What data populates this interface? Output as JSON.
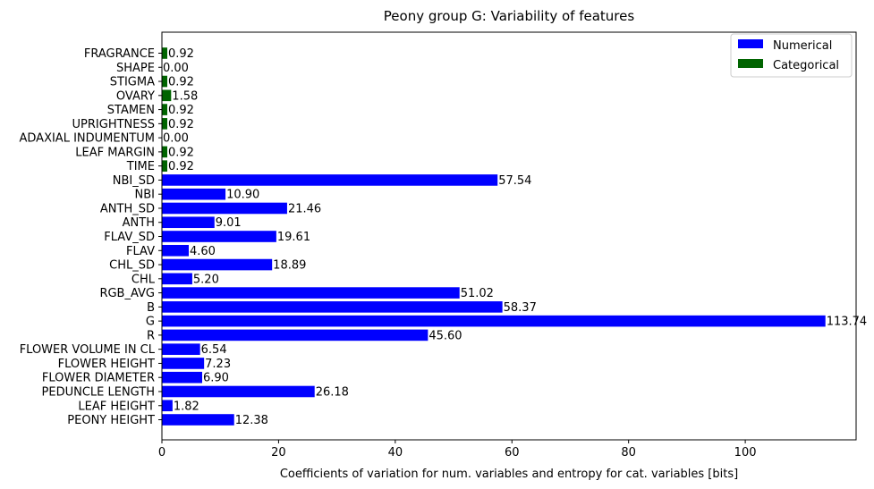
{
  "chart_data": {
    "type": "bar",
    "orientation": "horizontal",
    "title": "Peony group G: Variability of features",
    "xlabel": "Coefficients of variation for num. variables and entropy for cat. variables [bits]",
    "ylabel": "",
    "xlim": [
      0,
      119
    ],
    "xticks": [
      "0",
      "20",
      "40",
      "60",
      "80",
      "100"
    ],
    "grid": false,
    "legend_position": "top-right",
    "series": [
      {
        "name": "Numerical",
        "color": "#0000ff"
      },
      {
        "name": "Categorical",
        "color": "#006400"
      }
    ],
    "bars": [
      {
        "category": "FRAGRANCE",
        "value": 0.92,
        "label": "0.92",
        "series": "Categorical"
      },
      {
        "category": "SHAPE",
        "value": 0.0,
        "label": "0.00",
        "series": "Categorical"
      },
      {
        "category": "STIGMA",
        "value": 0.92,
        "label": "0.92",
        "series": "Categorical"
      },
      {
        "category": "OVARY",
        "value": 1.58,
        "label": "1.58",
        "series": "Categorical"
      },
      {
        "category": "STAMEN",
        "value": 0.92,
        "label": "0.92",
        "series": "Categorical"
      },
      {
        "category": "UPRIGHTNESS",
        "value": 0.92,
        "label": "0.92",
        "series": "Categorical"
      },
      {
        "category": "ADAXIAL INDUMENTUM",
        "value": 0.0,
        "label": "0.00",
        "series": "Categorical"
      },
      {
        "category": "LEAF MARGIN",
        "value": 0.92,
        "label": "0.92",
        "series": "Categorical"
      },
      {
        "category": "TIME",
        "value": 0.92,
        "label": "0.92",
        "series": "Categorical"
      },
      {
        "category": "NBI_SD",
        "value": 57.54,
        "label": "57.54",
        "series": "Numerical"
      },
      {
        "category": "NBI",
        "value": 10.9,
        "label": "10.90",
        "series": "Numerical"
      },
      {
        "category": "ANTH_SD",
        "value": 21.46,
        "label": "21.46",
        "series": "Numerical"
      },
      {
        "category": "ANTH",
        "value": 9.01,
        "label": "9.01",
        "series": "Numerical"
      },
      {
        "category": "FLAV_SD",
        "value": 19.61,
        "label": "19.61",
        "series": "Numerical"
      },
      {
        "category": "FLAV",
        "value": 4.6,
        "label": "4.60",
        "series": "Numerical"
      },
      {
        "category": "CHL_SD",
        "value": 18.89,
        "label": "18.89",
        "series": "Numerical"
      },
      {
        "category": "CHL",
        "value": 5.2,
        "label": "5.20",
        "series": "Numerical"
      },
      {
        "category": "RGB_AVG",
        "value": 51.02,
        "label": "51.02",
        "series": "Numerical"
      },
      {
        "category": "B",
        "value": 58.37,
        "label": "58.37",
        "series": "Numerical"
      },
      {
        "category": "G",
        "value": 113.74,
        "label": "113.74",
        "series": "Numerical"
      },
      {
        "category": "R",
        "value": 45.6,
        "label": "45.60",
        "series": "Numerical"
      },
      {
        "category": "FLOWER VOLUME IN CL",
        "value": 6.54,
        "label": "6.54",
        "series": "Numerical"
      },
      {
        "category": "FLOWER HEIGHT",
        "value": 7.23,
        "label": "7.23",
        "series": "Numerical"
      },
      {
        "category": "FLOWER DIAMETER",
        "value": 6.9,
        "label": "6.90",
        "series": "Numerical"
      },
      {
        "category": "PEDUNCLE LENGTH",
        "value": 26.18,
        "label": "26.18",
        "series": "Numerical"
      },
      {
        "category": "LEAF HEIGHT",
        "value": 1.82,
        "label": "1.82",
        "series": "Numerical"
      },
      {
        "category": "PEONY HEIGHT",
        "value": 12.38,
        "label": "12.38",
        "series": "Numerical"
      }
    ]
  }
}
